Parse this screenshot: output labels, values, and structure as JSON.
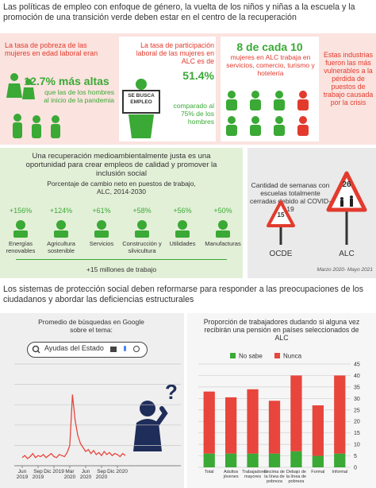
{
  "header": {
    "title": "Las políticas de empleo con enfoque de género, la vuelta de los niños y niñas a la escuela y la promoción de una transición verde deben estar en el centro de la recuperación"
  },
  "panels": [
    {
      "intro": "La tasa de pobreza de las mujeres en edad laboral eran",
      "highlight": "12.7% más altas",
      "outro": "que las de los hombres al inicio de la pandemia"
    },
    {
      "intro": "La tasa de participación laboral de las mujeres en ALC es de",
      "highlight": "51.4%",
      "outro": "comparado al 75% de los hombres",
      "sign": "SE BUSCA EMPLEO"
    },
    {
      "highlight": "8 de cada 10",
      "outro": "mujeres en ALC trabaja en servicios, comercio, turismo y hotelería"
    },
    {
      "outro": "Estas industrias fueron las más vulnerables a la pérdida de puestos de trabajo causada por la crisis"
    }
  ],
  "green": {
    "intro": "Una recuperación medioambientalmente justa es una oportunidad para crear empleos de calidad y promover la inclusión social",
    "subtitle": "Porcentaje de cambio neto en puestos de trabajo, ALC, 2014-2030",
    "items": [
      {
        "change": "+156%",
        "label": "Energías renovables"
      },
      {
        "change": "+124%",
        "label": "Agricultura sostenible"
      },
      {
        "change": "+61%",
        "label": "Servicios"
      },
      {
        "change": "+58%",
        "label": "Construcción y silvicultura"
      },
      {
        "change": "+56%",
        "label": "Utilidades"
      },
      {
        "change": "+50%",
        "label": "Manufacturas"
      }
    ],
    "total": "+15 millones de trabajo"
  },
  "schools": {
    "title": "Cantidad de semanas con escuelas totalmente cerradas debido al COVID-19",
    "signs": [
      {
        "value": "15",
        "label": "OCDE"
      },
      {
        "value": "26",
        "label": "ALC"
      }
    ],
    "period": "Marzo 2020- Mayo 2021"
  },
  "section": {
    "title": "Los sistemas de protección social deben reformarse para responder a las preocupaciones de los ciudadanos y abordar las deficiencias estructurales"
  },
  "chart_data": [
    {
      "type": "line",
      "title": "Promedio de búsquedas en Google sobre el tema:",
      "search": "Ayudas del Estado",
      "color": "#e8453c",
      "categories": [
        "Jun 2019",
        null,
        null,
        null,
        null,
        null,
        "Sep 2019",
        null,
        null,
        null,
        null,
        null,
        "Dic 2019",
        null,
        null,
        null,
        null,
        null,
        "Mar 2020",
        null,
        null,
        null,
        null,
        null,
        "Jun 2020",
        null,
        null,
        null,
        null,
        null,
        "Sep 2020",
        null,
        null,
        null,
        null,
        null,
        "Dic 2020",
        null,
        null,
        null
      ],
      "values": [
        8,
        10,
        7,
        9,
        12,
        8,
        10,
        9,
        11,
        8,
        10,
        12,
        9,
        8,
        11,
        10,
        9,
        13,
        20,
        70,
        45,
        30,
        22,
        18,
        14,
        16,
        12,
        15,
        11,
        13,
        10,
        14,
        11,
        13,
        10,
        12,
        11,
        9,
        12,
        10
      ],
      "ylim": [
        0,
        100
      ],
      "yticks": [
        0,
        20,
        40,
        60,
        80,
        100
      ],
      "grid": true
    },
    {
      "type": "bar",
      "title": "Proporción de trabajadores dudando si alguna vez recibirán una pensión en países seleccionados de ALC",
      "stacked": true,
      "categories": [
        "Total",
        "Adultos jóvenes",
        "Trabajadores mayores",
        "Encima de la línea de pobreza",
        "Debajo de la línea de pobreza",
        "Formal",
        "Informal"
      ],
      "series": [
        {
          "name": "No sabe",
          "color": "#3aa935",
          "values": [
            6,
            6,
            6,
            6,
            7,
            5,
            6
          ]
        },
        {
          "name": "Nunca",
          "color": "#e8453c",
          "values": [
            27,
            24.5,
            28,
            23,
            33,
            22,
            34
          ]
        }
      ],
      "ylim": [
        0,
        45
      ],
      "yticks": [
        0,
        5,
        10,
        15,
        20,
        25,
        30,
        35,
        40,
        45
      ],
      "grid": true,
      "legend": "top-left"
    }
  ]
}
